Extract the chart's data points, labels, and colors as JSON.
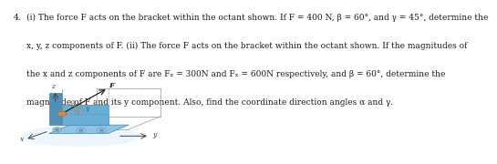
{
  "problem_number": "4.",
  "text_line1": "(i) The force F acts on the bracket within the octant shown. If F = 400 N, β = 60°, and γ = 45°, determine the",
  "text_line2": "x, y, z components of F. (ii) The force F acts on the bracket within the octant shown. If the magnitudes of",
  "text_line3": "the x and z components of F are Fₓ = 300N and Fₓ = 600N respectively, and β = 60°, determine the",
  "text_line4": "magnitude of F and its y component. Also, find the coordinate direction angles α and γ.",
  "bg_color": "#ffffff",
  "text_color": "#1a1a1a",
  "fontsize": 6.5,
  "base_color": "#8dc4e8",
  "plate_color": "#6aadd5",
  "dark_plate_color": "#5090b8",
  "shadow_color": "#ccddee"
}
